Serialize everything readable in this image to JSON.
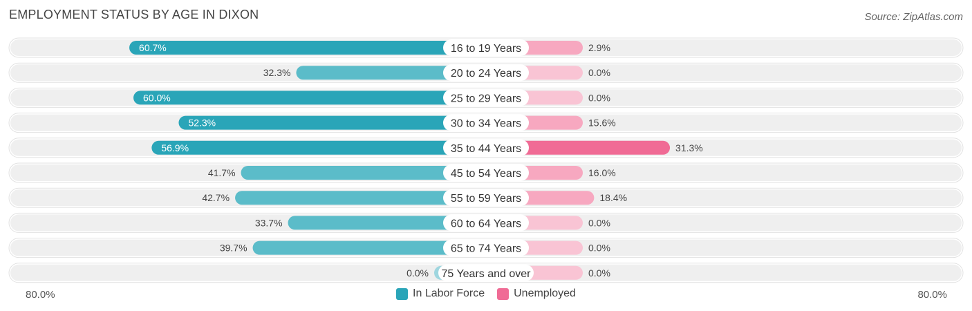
{
  "chart_data": {
    "type": "bar",
    "title": "EMPLOYMENT STATUS BY AGE IN DIXON",
    "source": "Source: ZipAtlas.com",
    "categories": [
      "16 to 19 Years",
      "20 to 24 Years",
      "25 to 29 Years",
      "30 to 34 Years",
      "35 to 44 Years",
      "45 to 54 Years",
      "55 to 59 Years",
      "60 to 64 Years",
      "65 to 74 Years",
      "75 Years and over"
    ],
    "series": [
      {
        "name": "In Labor Force",
        "values": [
          60.7,
          32.3,
          60.0,
          52.3,
          56.9,
          41.7,
          42.7,
          33.7,
          39.7,
          0.0
        ],
        "labels": [
          "60.7%",
          "32.3%",
          "60.0%",
          "52.3%",
          "56.9%",
          "41.7%",
          "42.7%",
          "33.7%",
          "39.7%",
          "0.0%"
        ]
      },
      {
        "name": "Unemployed",
        "values": [
          2.9,
          0.0,
          0.0,
          15.6,
          31.3,
          16.0,
          18.4,
          0.0,
          0.0,
          0.0
        ],
        "labels": [
          "2.9%",
          "0.0%",
          "0.0%",
          "15.6%",
          "31.3%",
          "16.0%",
          "18.4%",
          "0.0%",
          "0.0%",
          "0.0%"
        ]
      }
    ],
    "xlim": [
      -80,
      80
    ],
    "axis_left_label": "80.0%",
    "axis_right_label": "80.0%",
    "legend_position": "bottom-center"
  },
  "colors": {
    "labor_dark": "#2aa5b8",
    "labor_light": "#5bbcc9",
    "unemp_dark": "#f06b95",
    "unemp_light": "#f7a8c0",
    "track": "#efefef"
  }
}
